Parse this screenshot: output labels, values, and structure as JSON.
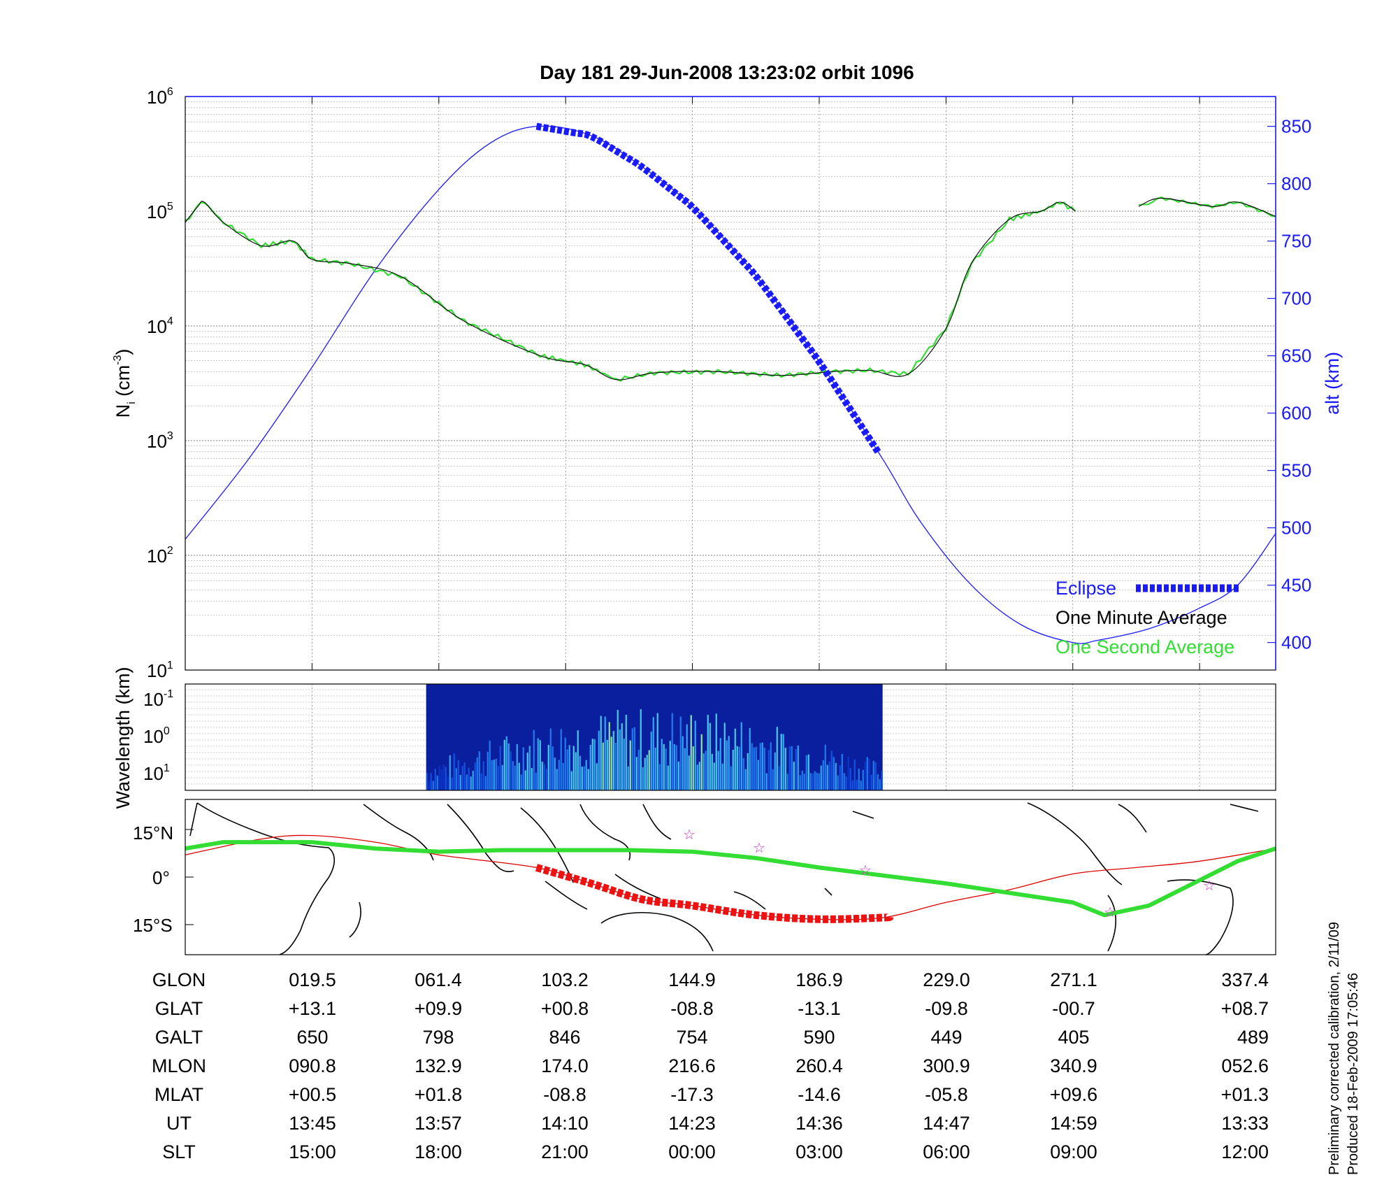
{
  "chart_data": [
    {
      "type": "line",
      "title": "Day 181  29-Jun-2008 13:23:02   orbit 1096",
      "ylabel_left": "N",
      "ylabel_left_sub": "i",
      "ylabel_left_unit_pre": "(cm",
      "ylabel_left_unit_sup": "-3",
      "ylabel_left_unit_post": ")",
      "ylabel_right": "alt (km)",
      "yscale_left": "log",
      "ylim_left": [
        10,
        1000000
      ],
      "yticks_left": [
        {
          "base": "10",
          "exp": "1"
        },
        {
          "base": "10",
          "exp": "2"
        },
        {
          "base": "10",
          "exp": "3"
        },
        {
          "base": "10",
          "exp": "4"
        },
        {
          "base": "10",
          "exp": "5"
        },
        {
          "base": "10",
          "exp": "6"
        }
      ],
      "ylim_right": [
        376,
        876
      ],
      "yticks_right": [
        "400",
        "450",
        "500",
        "550",
        "600",
        "650",
        "700",
        "750",
        "800",
        "850"
      ],
      "x_range": [
        0,
        8.6
      ],
      "grid": true,
      "legend_position": "bottom-right",
      "legend": [
        {
          "label": "Eclipse",
          "color": "#1a1aff"
        },
        {
          "label": "One Minute Average",
          "color": "#000000"
        },
        {
          "label": "One Second Average",
          "color": "#33dd33"
        }
      ],
      "series": [
        {
          "name": "alt (km)",
          "axis": "right",
          "color": "#1a1aff",
          "x": [
            0,
            0.5,
            1,
            1.5,
            2,
            2.4,
            2.77,
            3.2,
            3.6,
            4.0,
            4.5,
            5.0,
            5.5,
            5.8,
            6.2,
            6.6,
            7.0,
            7.2,
            7.6,
            8.0,
            8.3,
            8.6
          ],
          "y": [
            490,
            560,
            640,
            725,
            795,
            835,
            850,
            842,
            815,
            780,
            720,
            645,
            560,
            505,
            450,
            415,
            400,
            402,
            412,
            430,
            450,
            495
          ]
        },
        {
          "name": "Eclipse",
          "axis": "right",
          "color": "#1a1aff",
          "x_range": [
            2.77,
            5.55
          ]
        },
        {
          "name": "One Minute Average",
          "axis": "left",
          "color": "#000000",
          "gap": [
            7.02,
            7.52
          ],
          "x": [
            0,
            0.1,
            0.15,
            0.3,
            0.6,
            0.85,
            1.0,
            1.3,
            1.7,
            2.2,
            2.8,
            3.15,
            3.4,
            3.7,
            4.2,
            4.7,
            5.1,
            5.4,
            5.7,
            6.0,
            6.2,
            6.5,
            6.75,
            6.9,
            7.02,
            7.52,
            7.7,
            8.1,
            8.3,
            8.6
          ],
          "y": [
            80000,
            110000,
            120000,
            80000,
            50000,
            55000,
            38000,
            35000,
            27000,
            11000,
            5500,
            4600,
            3400,
            3900,
            4000,
            3700,
            4000,
            4100,
            3800,
            9500,
            35000,
            85000,
            100000,
            120000,
            100000,
            110000,
            130000,
            110000,
            120000,
            90000
          ]
        },
        {
          "name": "One Second Average",
          "axis": "left",
          "color": "#33dd33",
          "description_note": "",
          "x": [
            0,
            8.6
          ],
          "y": [
            80000,
            90000
          ]
        }
      ]
    },
    {
      "type": "heatmap",
      "ylabel": "Wavelength (km)",
      "yscale": "log",
      "yticks": [
        {
          "base": "10",
          "exp": "-1"
        },
        {
          "base": "10",
          "exp": "0"
        },
        {
          "base": "10",
          "exp": "1"
        }
      ],
      "x_range_data": [
        1.9,
        5.5
      ],
      "colormap": "jet (blue to yellow)"
    },
    {
      "type": "map",
      "lat_ticks": [
        "15°N",
        "0°",
        "15°S"
      ],
      "series": [
        {
          "name": "ground track",
          "color": "#dd0000"
        },
        {
          "name": "magnetic equator",
          "color": "#33dd33"
        },
        {
          "name": "eclipse track",
          "color": "#ee1111"
        }
      ],
      "markers": "magenta stars"
    }
  ],
  "table": {
    "row_labels": [
      "GLON",
      "GLAT",
      "GALT",
      "MLON",
      "MLAT",
      "UT",
      "SLT"
    ],
    "columns": [
      [
        "019.5",
        "+13.1",
        "650",
        "090.8",
        "+00.5",
        "13:45",
        "15:00"
      ],
      [
        "061.4",
        "+09.9",
        "798",
        "132.9",
        "+01.8",
        "13:57",
        "18:00"
      ],
      [
        "103.2",
        "+00.8",
        "846",
        "174.0",
        "-08.8",
        "14:10",
        "21:00"
      ],
      [
        "144.9",
        "-08.8",
        "754",
        "216.6",
        "-17.3",
        "14:23",
        "00:00"
      ],
      [
        "186.9",
        "-13.1",
        "590",
        "260.4",
        "-14.6",
        "14:36",
        "03:00"
      ],
      [
        "229.0",
        "-09.8",
        "449",
        "300.9",
        "-05.8",
        "14:47",
        "06:00"
      ],
      [
        "271.1",
        "-00.7",
        "405",
        "340.9",
        "+09.6",
        "14:59",
        "09:00"
      ],
      [
        "337.4",
        "+08.7",
        "489",
        "052.6",
        "+01.3",
        "13:33",
        "12:00"
      ]
    ]
  },
  "footer": {
    "line1": "Preliminary corrected calibration, 2/11/09",
    "line2": "Produced 18-Feb-2009 17:05:46"
  },
  "colors": {
    "altitude": "#1a1aff",
    "minute_avg": "#000000",
    "second_avg": "#33dd33",
    "track": "#dd0000",
    "eclipse_track": "#ee1111",
    "stars": "#cc33cc"
  }
}
